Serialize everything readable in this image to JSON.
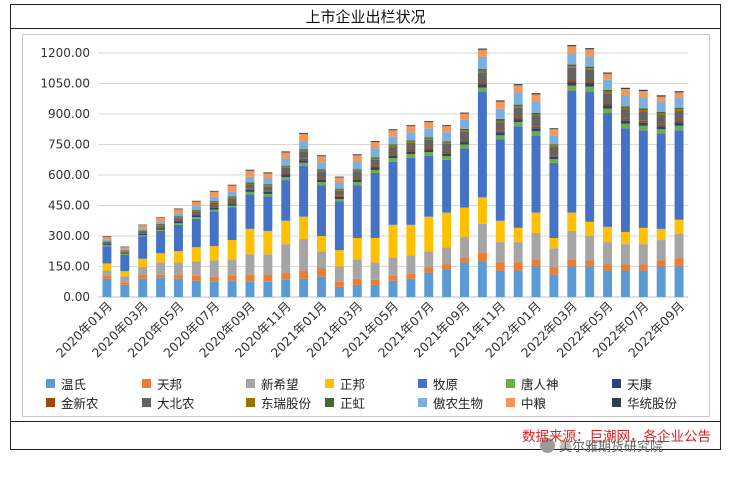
{
  "title": "上市企业出栏状况",
  "source": "数据来源：巨潮网，各企业公告",
  "watermark": "美尔雅期货研究院",
  "chart_data": {
    "type": "bar",
    "stacked": true,
    "title": "上市企业出栏状况",
    "ylim": [
      0,
      1200
    ],
    "yticks": [
      "0.00",
      "150.00",
      "300.00",
      "450.00",
      "600.00",
      "750.00",
      "900.00",
      "1050.00",
      "1200.00"
    ],
    "ytick_values": [
      0,
      150,
      300,
      450,
      600,
      750,
      900,
      1050,
      1200
    ],
    "categories": [
      "2020年01月",
      "2020年02月",
      "2020年03月",
      "2020年04月",
      "2020年05月",
      "2020年06月",
      "2020年07月",
      "2020年08月",
      "2020年09月",
      "2020年10月",
      "2020年11月",
      "2020年12月",
      "2021年01月",
      "2021年02月",
      "2021年03月",
      "2021年04月",
      "2021年05月",
      "2021年06月",
      "2021年07月",
      "2021年08月",
      "2021年09月",
      "2021年10月",
      "2021年11月",
      "2021年12月",
      "2022年01月",
      "2022年02月",
      "2022年03月",
      "2022年04月",
      "2022年05月",
      "2022年06月",
      "2022年07月",
      "2022年08月",
      "2022年09月"
    ],
    "xtick_labels": [
      "2020年01月",
      "2020年03月",
      "2020年05月",
      "2020年07月",
      "2020年09月",
      "2020年11月",
      "2021年01月",
      "2021年03月",
      "2021年05月",
      "2021年07月",
      "2021年09月",
      "2021年11月",
      "2022年01月",
      "2022年03月",
      "2022年05月",
      "2022年07月",
      "2022年09月"
    ],
    "xtick_every": 2,
    "legend_position": "bottom",
    "series": [
      {
        "name": "温氏",
        "color": "#5b9bd5",
        "values": [
          90,
          60,
          90,
          95,
          90,
          80,
          75,
          80,
          75,
          75,
          85,
          90,
          100,
          50,
          60,
          60,
          80,
          90,
          120,
          135,
          170,
          175,
          130,
          130,
          150,
          110,
          150,
          150,
          130,
          130,
          130,
          150,
          150
        ]
      },
      {
        "name": "天邦",
        "color": "#ed7d31",
        "values": [
          15,
          12,
          18,
          15,
          20,
          25,
          25,
          25,
          35,
          35,
          35,
          40,
          40,
          25,
          30,
          25,
          25,
          25,
          25,
          25,
          25,
          45,
          40,
          40,
          35,
          35,
          35,
          30,
          30,
          30,
          30,
          30,
          40
        ]
      },
      {
        "name": "新希望",
        "color": "#a5a5a5",
        "values": [
          25,
          30,
          40,
          60,
          60,
          70,
          80,
          80,
          100,
          100,
          140,
          155,
          85,
          75,
          95,
          85,
          90,
          90,
          80,
          85,
          100,
          140,
          100,
          100,
          130,
          95,
          140,
          120,
          110,
          100,
          100,
          100,
          120
        ]
      },
      {
        "name": "正邦",
        "color": "#ffc000",
        "values": [
          35,
          25,
          40,
          45,
          55,
          70,
          70,
          95,
          125,
          115,
          115,
          110,
          75,
          80,
          105,
          120,
          160,
          150,
          170,
          170,
          145,
          130,
          105,
          70,
          100,
          50,
          90,
          70,
          75,
          60,
          80,
          55,
          70
        ]
      },
      {
        "name": "牧原",
        "color": "#4472c4",
        "values": [
          85,
          80,
          110,
          110,
          130,
          140,
          170,
          160,
          170,
          170,
          200,
          250,
          250,
          240,
          260,
          320,
          310,
          330,
          300,
          260,
          290,
          520,
          400,
          500,
          380,
          370,
          600,
          640,
          560,
          510,
          480,
          470,
          440
        ]
      },
      {
        "name": "唐人神",
        "color": "#70ad47",
        "values": [
          5,
          4,
          6,
          6,
          8,
          8,
          10,
          10,
          12,
          12,
          15,
          15,
          15,
          12,
          15,
          15,
          18,
          18,
          18,
          18,
          20,
          20,
          20,
          20,
          20,
          18,
          25,
          25,
          22,
          22,
          22,
          20,
          22
        ]
      },
      {
        "name": "天康",
        "color": "#264478",
        "values": [
          5,
          4,
          6,
          6,
          8,
          8,
          9,
          9,
          10,
          10,
          12,
          12,
          12,
          10,
          12,
          12,
          12,
          12,
          12,
          12,
          12,
          15,
          15,
          15,
          15,
          12,
          15,
          15,
          15,
          15,
          15,
          15,
          18
        ]
      },
      {
        "name": "金新农",
        "color": "#9e480e",
        "values": [
          3,
          3,
          4,
          4,
          5,
          5,
          6,
          6,
          6,
          6,
          8,
          8,
          8,
          6,
          8,
          8,
          8,
          8,
          8,
          8,
          8,
          10,
          10,
          10,
          10,
          8,
          12,
          12,
          10,
          10,
          10,
          10,
          10
        ]
      },
      {
        "name": "大北农",
        "color": "#636363",
        "values": [
          5,
          5,
          8,
          10,
          12,
          15,
          18,
          20,
          20,
          22,
          25,
          35,
          30,
          25,
          30,
          30,
          35,
          35,
          40,
          40,
          45,
          50,
          40,
          45,
          50,
          40,
          60,
          55,
          50,
          45,
          45,
          45,
          45
        ]
      },
      {
        "name": "东瑞股份",
        "color": "#997300",
        "values": [
          3,
          3,
          3,
          4,
          4,
          4,
          5,
          5,
          5,
          5,
          6,
          6,
          6,
          5,
          6,
          6,
          6,
          6,
          6,
          6,
          6,
          8,
          8,
          8,
          8,
          6,
          8,
          8,
          8,
          8,
          8,
          8,
          8
        ]
      },
      {
        "name": "正虹",
        "color": "#43682b",
        "values": [
          3,
          3,
          3,
          4,
          4,
          4,
          5,
          5,
          5,
          5,
          5,
          6,
          6,
          5,
          6,
          6,
          6,
          6,
          6,
          6,
          6,
          8,
          8,
          8,
          8,
          6,
          8,
          8,
          8,
          8,
          8,
          8,
          8
        ]
      },
      {
        "name": "傲农生物",
        "color": "#7cafdd",
        "values": [
          8,
          6,
          10,
          12,
          15,
          18,
          20,
          25,
          28,
          28,
          35,
          40,
          35,
          30,
          40,
          45,
          40,
          40,
          45,
          45,
          45,
          60,
          50,
          60,
          55,
          45,
          55,
          50,
          50,
          55,
          55,
          50,
          50
        ]
      },
      {
        "name": "中粮",
        "color": "#f1975a",
        "values": [
          15,
          10,
          15,
          18,
          20,
          22,
          25,
          28,
          30,
          25,
          30,
          35,
          30,
          25,
          30,
          30,
          30,
          30,
          30,
          30,
          30,
          35,
          35,
          35,
          35,
          30,
          35,
          35,
          30,
          30,
          30,
          25,
          25
        ]
      },
      {
        "name": "华统股份",
        "color": "#333f50",
        "values": [
          3,
          3,
          3,
          3,
          4,
          4,
          4,
          4,
          5,
          5,
          5,
          5,
          5,
          4,
          5,
          5,
          5,
          5,
          5,
          5,
          5,
          6,
          6,
          6,
          6,
          5,
          6,
          6,
          6,
          6,
          6,
          6,
          6
        ]
      }
    ]
  }
}
